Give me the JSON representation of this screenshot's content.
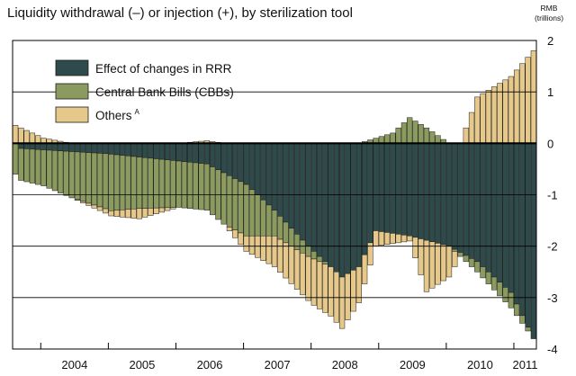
{
  "colors": {
    "rrr": "#2f4a4a",
    "cbb": "#8b9a5e",
    "others": "#e6c98a",
    "grid": "#000000"
  },
  "chart_data": {
    "type": "bar",
    "stacked": true,
    "title": "Liquidity withdrawal (–) or injection (+), by sterilization tool",
    "unit_line1": "RMB",
    "unit_line2": "(trillions)",
    "ylim": [
      -4,
      2
    ],
    "yticks": [
      "2",
      "1",
      "0",
      "-1",
      "-2",
      "-3",
      "-4"
    ],
    "y_axis_side": "right",
    "grid": true,
    "legend_position": "top-left",
    "x_start": "2003-08",
    "x_end": "2011-04",
    "year_labels": [
      "2004",
      "2005",
      "2006",
      "2007",
      "2008",
      "2009",
      "2010",
      "2011"
    ],
    "series": [
      {
        "name": "Effect of changes in RRR",
        "key": "rrr",
        "color_key": "rrr",
        "points": [
          [
            "2003-08",
            0
          ],
          [
            "2003-09",
            -0.1
          ],
          [
            "2004-12",
            -0.2
          ],
          [
            "2006-06",
            -0.4
          ],
          [
            "2007-01",
            -0.8
          ],
          [
            "2007-06",
            -1.3
          ],
          [
            "2007-12",
            -2.0
          ],
          [
            "2008-06",
            -2.6
          ],
          [
            "2008-09",
            -2.4
          ],
          [
            "2008-12",
            -1.7
          ],
          [
            "2009-06",
            -1.8
          ],
          [
            "2010-01",
            -2.0
          ],
          [
            "2010-06",
            -2.3
          ],
          [
            "2010-12",
            -2.9
          ],
          [
            "2011-04",
            -3.8
          ]
        ]
      },
      {
        "name": "Central Bank Bills (CBBs)",
        "key": "cbb",
        "color_key": "cbb",
        "points": [
          [
            "2003-08",
            -0.6
          ],
          [
            "2004-01",
            -0.7
          ],
          [
            "2004-06",
            -0.9
          ],
          [
            "2005-01",
            -1.1
          ],
          [
            "2005-06",
            -1.0
          ],
          [
            "2006-01",
            -0.9
          ],
          [
            "2006-06",
            -0.9
          ],
          [
            "2006-09",
            -1.0
          ],
          [
            "2007-01",
            -1.0
          ],
          [
            "2007-06",
            -0.5
          ],
          [
            "2007-12",
            -0.2
          ],
          [
            "2008-04",
            0
          ],
          [
            "2008-09",
            0
          ],
          [
            "2009-03",
            0.2
          ],
          [
            "2009-06",
            0.5
          ],
          [
            "2009-09",
            0.3
          ],
          [
            "2010-01",
            0
          ],
          [
            "2010-06",
            -0.2
          ],
          [
            "2010-12",
            -0.3
          ],
          [
            "2011-04",
            0
          ]
        ]
      },
      {
        "name": "Others",
        "key": "others",
        "color_key": "others",
        "note_marker": "A",
        "points": [
          [
            "2003-08",
            0.35
          ],
          [
            "2004-01",
            0.1
          ],
          [
            "2004-06",
            0
          ],
          [
            "2005-01",
            -0.1
          ],
          [
            "2005-06",
            -0.2
          ],
          [
            "2006-01",
            0
          ],
          [
            "2006-06",
            0.05
          ],
          [
            "2006-09",
            0
          ],
          [
            "2007-01",
            -0.3
          ],
          [
            "2007-06",
            -0.6
          ],
          [
            "2008-01",
            -0.9
          ],
          [
            "2008-06",
            -1.0
          ],
          [
            "2008-09",
            -0.7
          ],
          [
            "2008-12",
            -0.3
          ],
          [
            "2009-06",
            -0.1
          ],
          [
            "2009-09",
            -1.0
          ],
          [
            "2010-01",
            -0.6
          ],
          [
            "2010-06",
            0.9
          ],
          [
            "2010-12",
            1.3
          ],
          [
            "2011-04",
            1.8
          ]
        ]
      }
    ]
  }
}
